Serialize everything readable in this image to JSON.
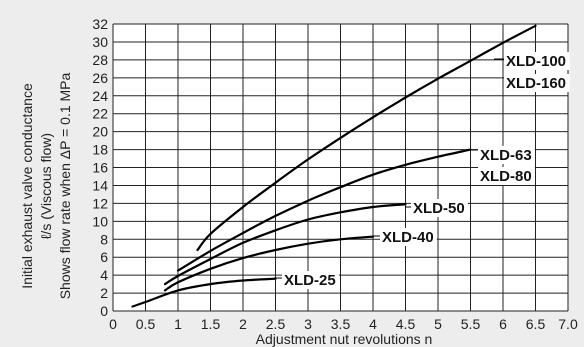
{
  "chart_data": {
    "type": "line",
    "title": "",
    "xlabel": "Adjustment nut revolutions n",
    "ylabel_lines": [
      "Initial exhaust valve conductance",
      "ℓ/s (Viscous flow)",
      "Shows flow rate when   ΔP = 0.1 MPa"
    ],
    "xlim": [
      0,
      7.0
    ],
    "ylim": [
      0,
      32
    ],
    "x_ticks": [
      "0",
      "0.5",
      "1",
      "1.5",
      "2",
      "2.5",
      "3",
      "3.5",
      "4",
      "4.5",
      "5",
      "5.5",
      "6",
      "6.5",
      "7.0"
    ],
    "x_tick_values": [
      0,
      0.5,
      1,
      1.5,
      2,
      2.5,
      3,
      3.5,
      4,
      4.5,
      5,
      5.5,
      6,
      6.5,
      7
    ],
    "y_ticks": [
      "0",
      "2",
      "4",
      "6",
      "8",
      "10",
      "12",
      "14",
      "16",
      "18",
      "20",
      "22",
      "24",
      "26",
      "28",
      "30",
      "32"
    ],
    "y_tick_values": [
      0,
      2,
      4,
      6,
      8,
      10,
      12,
      14,
      16,
      18,
      20,
      22,
      24,
      26,
      28,
      30,
      32
    ],
    "grid": true,
    "series": [
      {
        "name": "XLD-100 XLD-160",
        "labels": [
          "XLD-100",
          "XLD-160"
        ],
        "x": [
          1.3,
          1.5,
          2.0,
          2.5,
          3.0,
          3.5,
          4.0,
          4.5,
          5.0,
          5.5,
          6.0,
          6.5
        ],
        "y": [
          6.8,
          8.6,
          11.6,
          14.3,
          16.9,
          19.3,
          21.6,
          23.8,
          25.9,
          27.9,
          29.9,
          31.8
        ]
      },
      {
        "name": "XLD-63 XLD-80",
        "labels": [
          "XLD-63",
          "XLD-80"
        ],
        "x": [
          1.0,
          1.5,
          2.0,
          2.5,
          3.0,
          3.5,
          4.0,
          4.5,
          5.0,
          5.5
        ],
        "y": [
          4.5,
          6.7,
          8.7,
          10.6,
          12.3,
          13.8,
          15.2,
          16.3,
          17.2,
          18.0
        ]
      },
      {
        "name": "XLD-50",
        "labels": [
          "XLD-50"
        ],
        "x": [
          0.8,
          1.0,
          1.5,
          2.0,
          2.5,
          3.0,
          3.5,
          4.0,
          4.5
        ],
        "y": [
          3.0,
          3.9,
          5.8,
          7.6,
          9.0,
          10.2,
          11.0,
          11.6,
          11.9
        ]
      },
      {
        "name": "XLD-40",
        "labels": [
          "XLD-40"
        ],
        "x": [
          0.8,
          1.0,
          1.5,
          2.0,
          2.5,
          3.0,
          3.5,
          4.0
        ],
        "y": [
          2.3,
          3.2,
          4.7,
          5.9,
          6.8,
          7.5,
          8.0,
          8.3
        ]
      },
      {
        "name": "XLD-25",
        "labels": [
          "XLD-25"
        ],
        "x": [
          0.3,
          0.5,
          1.0,
          1.5,
          2.0,
          2.5
        ],
        "y": [
          0.5,
          1.0,
          2.3,
          3.0,
          3.4,
          3.6
        ]
      }
    ]
  }
}
